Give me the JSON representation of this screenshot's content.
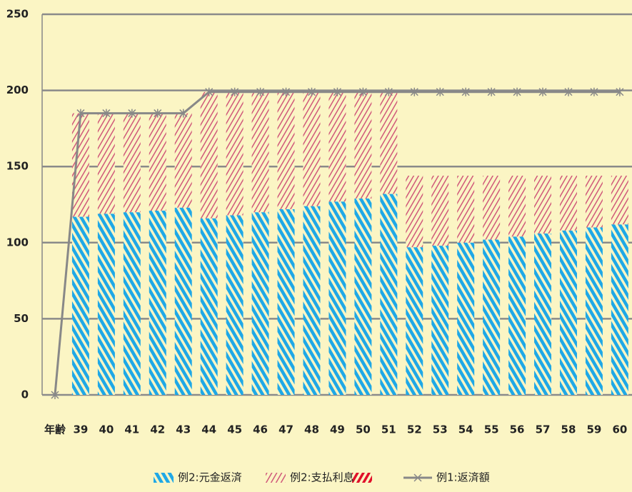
{
  "chart_data": {
    "type": "bar",
    "stacked": true,
    "categories": [
      "年齢",
      "39",
      "40",
      "41",
      "42",
      "43",
      "44",
      "45",
      "46",
      "47",
      "48",
      "49",
      "50",
      "51",
      "52",
      "53",
      "54",
      "55",
      "56",
      "57",
      "58",
      "59",
      "60"
    ],
    "series": [
      {
        "name": "例2:元金返済",
        "color": "#1fa8e6",
        "values": [
          null,
          117,
          119,
          120,
          121,
          123,
          116,
          118,
          120,
          122,
          124,
          127,
          129,
          132,
          97,
          98,
          100,
          102,
          104,
          106,
          108,
          110,
          112
        ]
      },
      {
        "name": "例2:支払利息",
        "color": "#d0587a",
        "values": [
          null,
          68,
          66,
          65,
          64,
          62,
          83,
          81,
          79,
          77,
          75,
          72,
          70,
          67,
          47,
          46,
          44,
          42,
          40,
          38,
          36,
          34,
          32
        ]
      },
      {
        "name": "例1:返済額",
        "type": "line",
        "color": "#888888",
        "values": [
          0,
          185,
          185,
          185,
          185,
          185,
          199,
          199,
          199,
          199,
          199,
          199,
          199,
          199,
          199,
          199,
          199,
          199,
          199,
          199,
          199,
          199,
          199
        ]
      }
    ],
    "ylim": [
      0,
      250
    ],
    "yticks": [
      0,
      50,
      100,
      150,
      200,
      250
    ],
    "grid": true
  }
}
